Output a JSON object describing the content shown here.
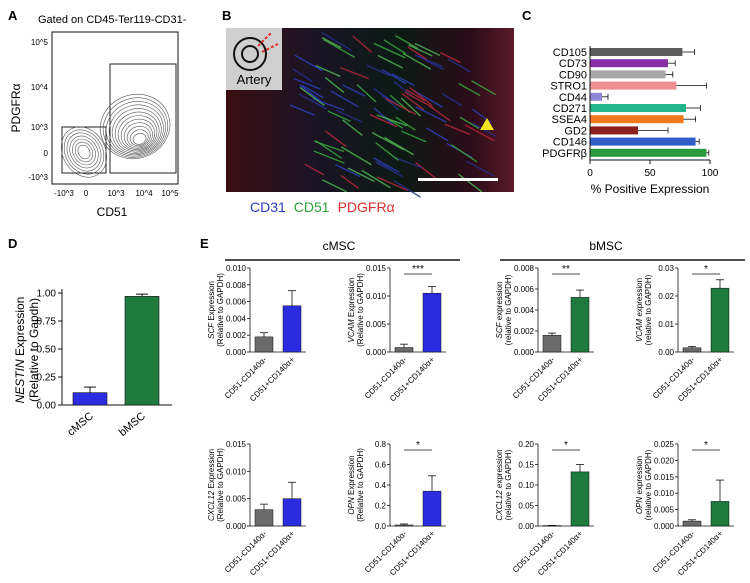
{
  "panel_labels": {
    "a": "A",
    "b": "B",
    "c": "C",
    "d": "D",
    "e": "E"
  },
  "panel_a": {
    "title": "Gated on CD45-Ter119-CD31-",
    "ylabel": "PDGFRα",
    "xlabel": "CD51",
    "y_ticks": [
      "10^5",
      "10^4",
      "10^3",
      "0",
      "-10^3"
    ],
    "x_ticks": [
      "-10^3",
      "0",
      "10^3",
      "10^4",
      "10^5"
    ]
  },
  "panel_b": {
    "inset_label": "Artery",
    "legend": [
      {
        "text": "CD31",
        "color": "#2b3bbf"
      },
      {
        "text": "CD51",
        "color": "#2fa33a"
      },
      {
        "text": "PDGFRα",
        "color": "#d9302c"
      }
    ]
  },
  "chart_data": [
    {
      "panel": "C",
      "type": "bar",
      "orientation": "horizontal",
      "categories": [
        "CD105",
        "CD73",
        "CD90",
        "STRO1",
        "CD44",
        "CD271",
        "SSEA4",
        "GD2",
        "CD146",
        "PDGFRβ"
      ],
      "values": [
        77,
        65,
        63,
        72,
        10,
        80,
        78,
        40,
        88,
        97
      ],
      "errors": [
        10,
        6,
        6,
        25,
        5,
        12,
        10,
        25,
        3,
        2
      ],
      "colors": [
        "#5c5c5c",
        "#8a2ea8",
        "#a8a8a8",
        "#ef8f8f",
        "#8f88d8",
        "#23b58a",
        "#f0781e",
        "#8d1f1f",
        "#2f5cc7",
        "#2a9a3c"
      ],
      "xlabel": "% Positive Expression",
      "xlim": [
        0,
        100
      ],
      "x_ticks": [
        "0",
        "50",
        "100"
      ]
    },
    {
      "panel": "D",
      "type": "bar",
      "categories": [
        "cMSC",
        "bMSC"
      ],
      "values": [
        0.11,
        0.97
      ],
      "errors": [
        0.05,
        0.02
      ],
      "colors": [
        "#2b2be0",
        "#1e7a3d"
      ],
      "ylabel_gene": "NESTIN",
      "ylabel_rest": " Expression",
      "ylabel2": "(Relative to Gapdh)",
      "ylim": [
        0,
        1.0
      ],
      "y_ticks": [
        "0.00",
        "0.25",
        "0.50",
        "0.75",
        "1.00"
      ]
    }
  ],
  "panel_e": {
    "group_cmsc": "cMSC",
    "group_bmsc": "bMSC",
    "cat_neg": "CD51-CD140α-",
    "cat_pos": "CD51+CD140α+",
    "plots": [
      {
        "gene": "SCF",
        "ylabel_rest": " Expression",
        "ylabel2": "(Relative to GAPDH)",
        "ymax": 0.01,
        "y_ticks": [
          "0.000",
          "0.002",
          "0.004",
          "0.006",
          "0.008",
          "0.010"
        ],
        "values": [
          0.0018,
          0.0055
        ],
        "errors": [
          0.0005,
          0.0018
        ],
        "pos_color": "#2b2be0",
        "sig": ""
      },
      {
        "gene": "VCAM",
        "ylabel_rest": " Expression",
        "ylabel2": "(Relative to GAPDH)",
        "ymax": 0.015,
        "y_ticks": [
          "0.000",
          "0.005",
          "0.010",
          "0.015"
        ],
        "values": [
          0.0008,
          0.0105
        ],
        "errors": [
          0.0006,
          0.0012
        ],
        "pos_color": "#2b2be0",
        "sig": "***"
      },
      {
        "gene": "SCF",
        "ylabel_rest": " expression",
        "ylabel2": "(relative to GAPDH)",
        "ymax": 0.008,
        "y_ticks": [
          "0.000",
          "0.002",
          "0.004",
          "0.006",
          "0.008"
        ],
        "values": [
          0.0016,
          0.0052
        ],
        "errors": [
          0.0002,
          0.0007
        ],
        "pos_color": "#1e7a3d",
        "sig": "**"
      },
      {
        "gene": "VCAM",
        "ylabel_rest": " expression",
        "ylabel2": "(relative to GAPDH)",
        "ymax": 0.03,
        "y_ticks": [
          "0.00",
          "0.01",
          "0.02",
          "0.03"
        ],
        "values": [
          0.0015,
          0.0228
        ],
        "errors": [
          0.0005,
          0.003
        ],
        "pos_color": "#1e7a3d",
        "sig": "*"
      },
      {
        "gene": "CXCL12",
        "ylabel_rest": " Expression",
        "ylabel2": "(Relative to GAPDH)",
        "ymax": 0.015,
        "y_ticks": [
          "0.000",
          "0.005",
          "0.010",
          "0.015"
        ],
        "values": [
          0.003,
          0.005
        ],
        "errors": [
          0.001,
          0.003
        ],
        "pos_color": "#2b2be0",
        "sig": ""
      },
      {
        "gene": "OPN",
        "ylabel_rest": " Expression",
        "ylabel2": "(Relative to GAPDH)",
        "ymax": 0.8,
        "y_ticks": [
          "0.0",
          "0.2",
          "0.4",
          "0.6",
          "0.8"
        ],
        "values": [
          0.01,
          0.34
        ],
        "errors": [
          0.01,
          0.15
        ],
        "pos_color": "#2b2be0",
        "sig": "*"
      },
      {
        "gene": "CXCL12",
        "ylabel_rest": " expression",
        "ylabel2": "(relative to GAPDH)",
        "ymax": 0.2,
        "y_ticks": [
          "0.00",
          "0.05",
          "0.10",
          "0.15",
          "0.20"
        ],
        "values": [
          0.001,
          0.132
        ],
        "errors": [
          0.0005,
          0.018
        ],
        "pos_color": "#1e7a3d",
        "sig": "*"
      },
      {
        "gene": "OPN",
        "ylabel_rest": " expression",
        "ylabel2": "(relative to GAPDH)",
        "ymax": 0.025,
        "y_ticks": [
          "0.000",
          "0.005",
          "0.010",
          "0.015",
          "0.020",
          "0.025"
        ],
        "values": [
          0.0015,
          0.0075
        ],
        "errors": [
          0.0004,
          0.0065
        ],
        "pos_color": "#1e7a3d",
        "sig": "*"
      }
    ]
  }
}
